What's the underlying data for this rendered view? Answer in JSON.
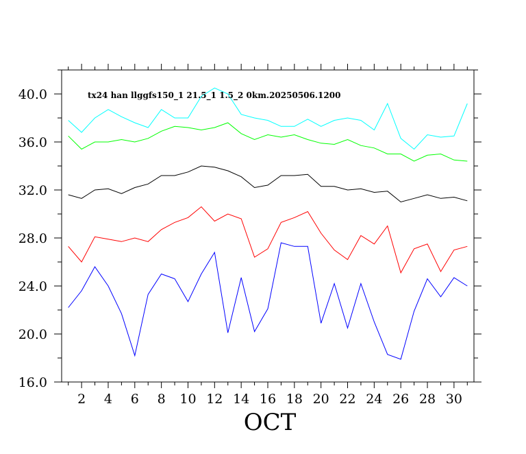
{
  "chart_data": {
    "type": "line",
    "title": "tx24 han llggfs150_1 21.5_1 1.5_2 0km.20250506.1200",
    "xlabel": "OCT",
    "ylabel": "",
    "xlim": [
      0.5,
      31.5
    ],
    "ylim": [
      16.0,
      42.0
    ],
    "grid": false,
    "legend": "none",
    "x_ticks": [
      2,
      4,
      6,
      8,
      10,
      12,
      14,
      16,
      18,
      20,
      22,
      24,
      26,
      28,
      30
    ],
    "x_tick_labels": [
      "2",
      "4",
      "6",
      "8",
      "10",
      "12",
      "14",
      "16",
      "18",
      "20",
      "22",
      "24",
      "26",
      "28",
      "30"
    ],
    "y_ticks": [
      16,
      20,
      24,
      28,
      32,
      36,
      40
    ],
    "y_tick_labels": [
      "16.0",
      "20.0",
      "24.0",
      "28.0",
      "32.0",
      "36.0",
      "40.0"
    ],
    "x": [
      1,
      2,
      3,
      4,
      5,
      6,
      7,
      8,
      9,
      10,
      11,
      12,
      13,
      14,
      15,
      16,
      17,
      18,
      19,
      20,
      21,
      22,
      23,
      24,
      25,
      26,
      27,
      28,
      29,
      30,
      31
    ],
    "series": [
      {
        "color": "#00ffff",
        "values": [
          37.8,
          36.8,
          38.0,
          38.7,
          38.1,
          37.6,
          37.2,
          38.7,
          38.0,
          38.0,
          39.8,
          40.5,
          40.0,
          38.3,
          38.0,
          37.8,
          37.3,
          37.3,
          37.9,
          37.3,
          37.8,
          38.0,
          37.8,
          37.0,
          39.2,
          36.3,
          35.4,
          36.6,
          36.4,
          36.5,
          39.2
        ]
      },
      {
        "color": "#00ff00",
        "values": [
          36.5,
          35.4,
          36.0,
          36.0,
          36.2,
          36.0,
          36.3,
          36.9,
          37.3,
          37.2,
          37.0,
          37.2,
          37.6,
          36.7,
          36.2,
          36.6,
          36.4,
          36.6,
          36.2,
          35.9,
          35.8,
          36.2,
          35.7,
          35.5,
          35.0,
          35.0,
          34.4,
          34.9,
          35.0,
          34.5,
          34.4
        ]
      },
      {
        "color": "#000000",
        "values": [
          31.6,
          31.3,
          32.0,
          32.1,
          31.7,
          32.2,
          32.5,
          33.2,
          33.2,
          33.5,
          34.0,
          33.9,
          33.6,
          33.1,
          32.2,
          32.4,
          33.2,
          33.2,
          33.3,
          32.3,
          32.3,
          32.0,
          32.1,
          31.8,
          31.9,
          31.0,
          31.3,
          31.6,
          31.3,
          31.4,
          31.1
        ]
      },
      {
        "color": "#ff0000",
        "values": [
          27.3,
          26.0,
          28.1,
          27.9,
          27.7,
          28.0,
          27.7,
          28.7,
          29.3,
          29.7,
          30.6,
          29.4,
          30.0,
          29.6,
          26.4,
          27.1,
          29.3,
          29.7,
          30.2,
          28.4,
          27.0,
          26.2,
          28.2,
          27.5,
          29.0,
          25.1,
          27.1,
          27.5,
          25.2,
          27.0,
          27.3
        ]
      },
      {
        "color": "#0000ff",
        "values": [
          22.2,
          23.6,
          25.6,
          24.0,
          21.7,
          18.2,
          23.3,
          25.0,
          24.6,
          22.7,
          25.0,
          26.8,
          20.1,
          24.7,
          20.2,
          22.1,
          27.6,
          27.3,
          27.3,
          20.9,
          24.2,
          20.5,
          24.2,
          21.0,
          18.3,
          17.9,
          21.9,
          24.6,
          23.1,
          24.7,
          24.0
        ]
      }
    ]
  }
}
